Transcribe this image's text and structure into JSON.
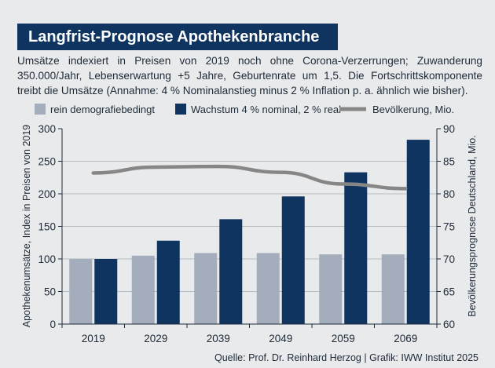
{
  "title": "Langfrist-Prognose Apothekenbranche",
  "subtitle_lines": [
    "Umsätze indexiert in Preisen von 2019 noch ohne Corona-Verzerrungen; Zuwanderung",
    "350.000/Jahr, Lebenserwartung +5 Jahre, Geburtenrate um 1,5. Die Fortschrittskomponente",
    "treibt die Umsätze (Annahme: 4 % Nominalanstieg minus 2 % Inflation p. a. ähnlich wie bisher)."
  ],
  "source": "Quelle: Prof. Dr. Reinhard Herzog | Grafik: IWW Institut 2025",
  "colors": {
    "demografie": "#a3adbb",
    "wachstum": "#0f3460",
    "bevoelkerung": "#868686",
    "text": "#1e2a38"
  },
  "chart_data": {
    "type": "bar",
    "categories": [
      "2019",
      "2029",
      "2039",
      "2049",
      "2059",
      "2069"
    ],
    "series": [
      {
        "name": "rein demografiebedingt",
        "type": "bar",
        "axis": "left",
        "values": [
          100,
          105,
          109,
          109,
          107,
          107
        ]
      },
      {
        "name": "Wachstum 4 % nominal, 2 % real",
        "type": "bar",
        "axis": "left",
        "values": [
          100,
          128,
          161,
          196,
          233,
          283
        ]
      },
      {
        "name": "Bevölkerung, Mio.",
        "type": "line",
        "axis": "right",
        "values": [
          83.2,
          84.1,
          84.2,
          83.3,
          81.5,
          80.8
        ]
      }
    ],
    "ylabel": "Apothekenumsätze, Index in Preisen von 2019",
    "ylabel_right": "Bevölkerungsprognose Deutschland, Mio.",
    "ylim": [
      0,
      300
    ],
    "ylim_right": [
      60,
      90
    ],
    "yticks": [
      0,
      50,
      100,
      150,
      200,
      250,
      300
    ],
    "yticks_right": [
      60,
      65,
      70,
      75,
      80,
      85,
      90
    ],
    "grid": true,
    "legend_position": "top"
  }
}
